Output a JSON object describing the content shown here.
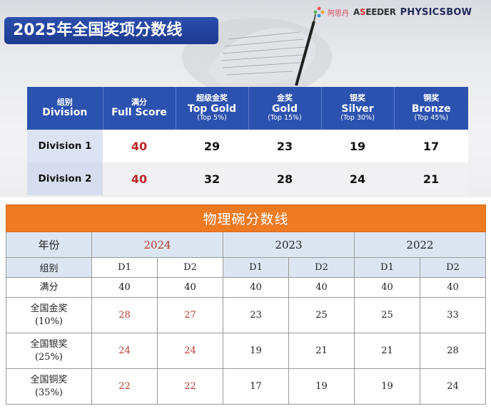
{
  "top": {
    "title": "2025年全国奖项分数线",
    "logos": {
      "mark_cn": "阿思丹",
      "seeder_prefix": "A",
      "seeder_red": "S",
      "seeder_rest": "EEDER",
      "physics": "PHYSICSBOW"
    },
    "headers": [
      {
        "cn": "组别",
        "en": "Division",
        "pct": ""
      },
      {
        "cn": "满分",
        "en": "Full Score",
        "pct": ""
      },
      {
        "cn": "超级金奖",
        "en": "Top Gold",
        "pct": "(Top 5%)"
      },
      {
        "cn": "金奖",
        "en": "Gold",
        "pct": "(Top 15%)"
      },
      {
        "cn": "银奖",
        "en": "Silver",
        "pct": "(Top 30%)"
      },
      {
        "cn": "铜奖",
        "en": "Bronze",
        "pct": "(Top 45%)"
      }
    ],
    "rows": [
      {
        "division": "Division 1",
        "full": "40",
        "top_gold": "29",
        "gold": "23",
        "silver": "19",
        "bronze": "17"
      },
      {
        "division": "Division 2",
        "full": "40",
        "top_gold": "32",
        "gold": "28",
        "silver": "24",
        "bronze": "21"
      }
    ]
  },
  "bottom": {
    "banner": "物理碗分数线",
    "year_label": "年份",
    "years": [
      "2024",
      "2023",
      "2022"
    ],
    "group_label": "组别",
    "divs": [
      "D1",
      "D2",
      "D1",
      "D2",
      "D1",
      "D2"
    ],
    "full_label": "满分",
    "full_values": [
      "40",
      "40",
      "40",
      "40",
      "40",
      "40"
    ],
    "rows": [
      {
        "label_1": "全国金奖",
        "label_2": "(10%)",
        "values": [
          "28",
          "27",
          "23",
          "25",
          "25",
          "33"
        ]
      },
      {
        "label_1": "全国银奖",
        "label_2": "(25%)",
        "values": [
          "24",
          "24",
          "19",
          "21",
          "21",
          "28"
        ]
      },
      {
        "label_1": "全国铜奖",
        "label_2": "(35%)",
        "values": [
          "22",
          "22",
          "17",
          "19",
          "19",
          "24"
        ]
      }
    ]
  },
  "colors": {
    "title_bg": "#2b4fae",
    "header_bg": "#2c52b0",
    "full_score_red": "#c0262b",
    "banner_orange": "#ee7a22",
    "header_light_blue": "#dce6f2",
    "year_2024_red": "#b83a2e"
  }
}
